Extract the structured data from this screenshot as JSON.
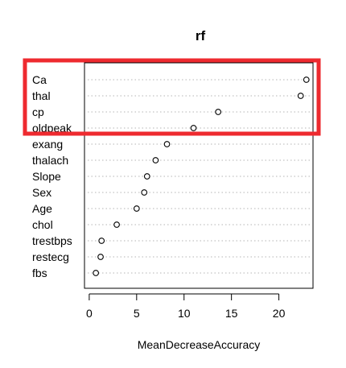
{
  "chart_data": {
    "type": "scatter",
    "title": "rf",
    "xlabel": "MeanDecreaseAccuracy",
    "ylabel": "",
    "xlim": [
      -0.5,
      23.6
    ],
    "xticks": [
      0,
      5,
      10,
      15,
      20
    ],
    "grid": "dotted horizontal guide lines",
    "highlight": {
      "color": "#ee2a2f",
      "categories": [
        "Ca",
        "thal",
        "cp",
        "oldpeak"
      ]
    },
    "categories": [
      "Ca",
      "thal",
      "cp",
      "oldpeak",
      "exang",
      "thalach",
      "Slope",
      "Sex",
      "Age",
      "chol",
      "trestbps",
      "restecg",
      "fbs"
    ],
    "values": [
      22.9,
      22.3,
      13.6,
      11.0,
      8.2,
      7.0,
      6.1,
      5.8,
      5.0,
      2.9,
      1.3,
      1.2,
      0.7
    ]
  }
}
